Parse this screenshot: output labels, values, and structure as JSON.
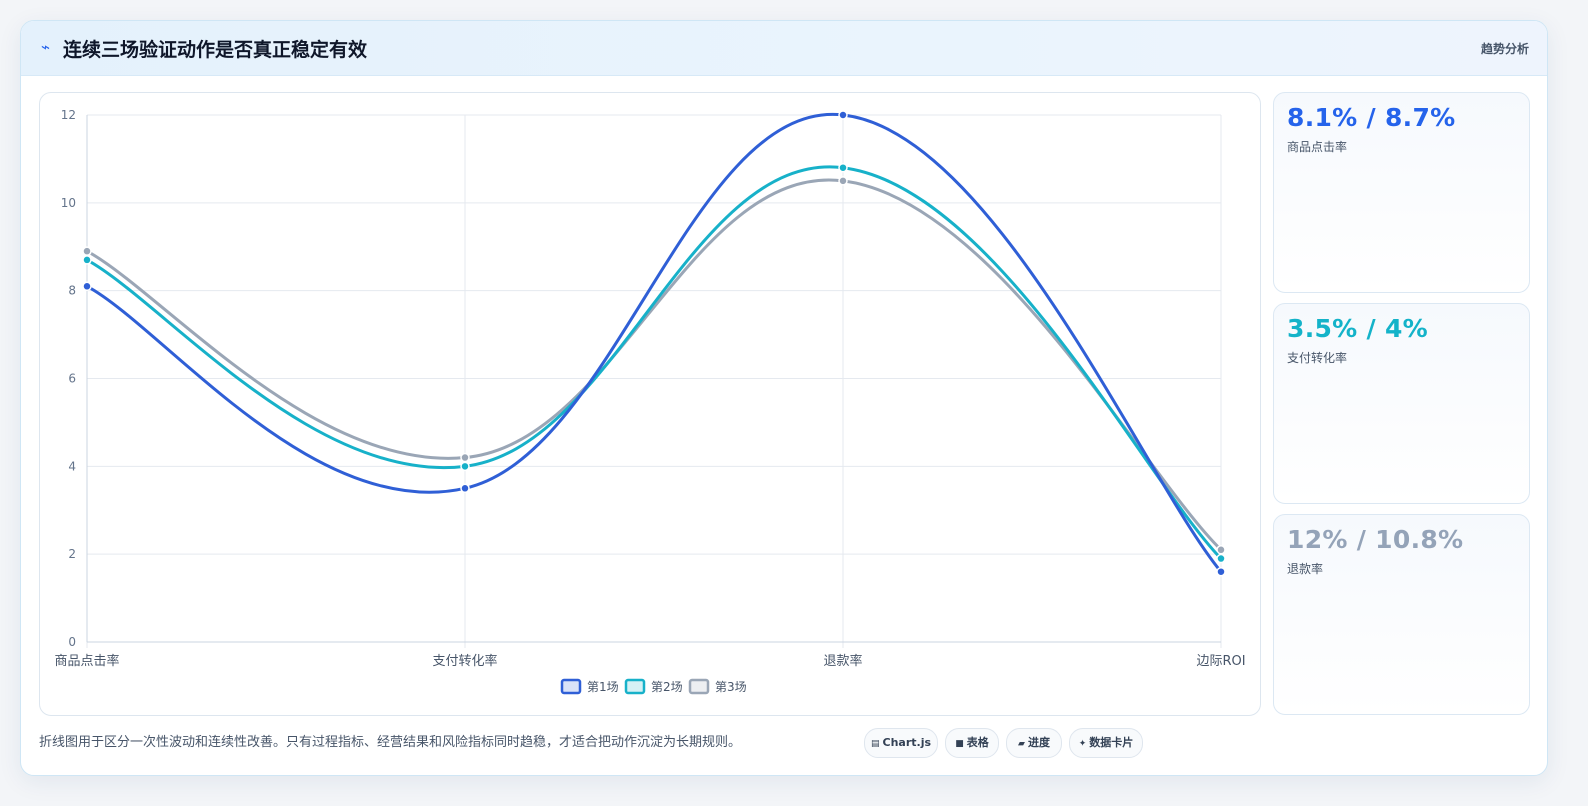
{
  "header": {
    "title": "连续三场验证动作是否真正稳定有效",
    "tag": "趋势分析"
  },
  "chart_data": {
    "type": "line",
    "categories": [
      "商品点击率",
      "支付转化率",
      "退款率",
      "边际ROI"
    ],
    "series": [
      {
        "name": "第1场",
        "values": [
          8.1,
          3.5,
          12,
          1.6
        ],
        "color": "#2f5fd6"
      },
      {
        "name": "第2场",
        "values": [
          8.7,
          4.0,
          10.8,
          1.9
        ],
        "color": "#17b1c9"
      },
      {
        "name": "第3场",
        "values": [
          8.9,
          4.2,
          10.5,
          2.1
        ],
        "color": "#9aa6b6"
      }
    ],
    "ylim": [
      0,
      12
    ],
    "yticks": [
      "0",
      "2",
      "4",
      "6",
      "8",
      "10",
      "12"
    ],
    "grid": true,
    "legend": "bottom"
  },
  "stats": [
    {
      "value": "8.1% / 8.7%",
      "label": "商品点击率",
      "color": "#2563eb"
    },
    {
      "value": "3.5% / 4%",
      "label": "支付转化率",
      "color": "#14b3c9"
    },
    {
      "value": "12% / 10.8%",
      "label": "退款率",
      "color": "#94a3b8"
    }
  ],
  "footer": {
    "note": "折线图用于区分一次性波动和连续性改善。只有过程指标、经营结果和风险指标同时趋稳，才适合把动作沉淀为长期规则。",
    "chips": [
      {
        "icon": "chart-icon",
        "label": "Chart.js"
      },
      {
        "icon": "table-icon",
        "label": "表格"
      },
      {
        "icon": "progress-icon",
        "label": "进度"
      },
      {
        "icon": "sparkle-icon",
        "label": "数据卡片"
      }
    ]
  }
}
